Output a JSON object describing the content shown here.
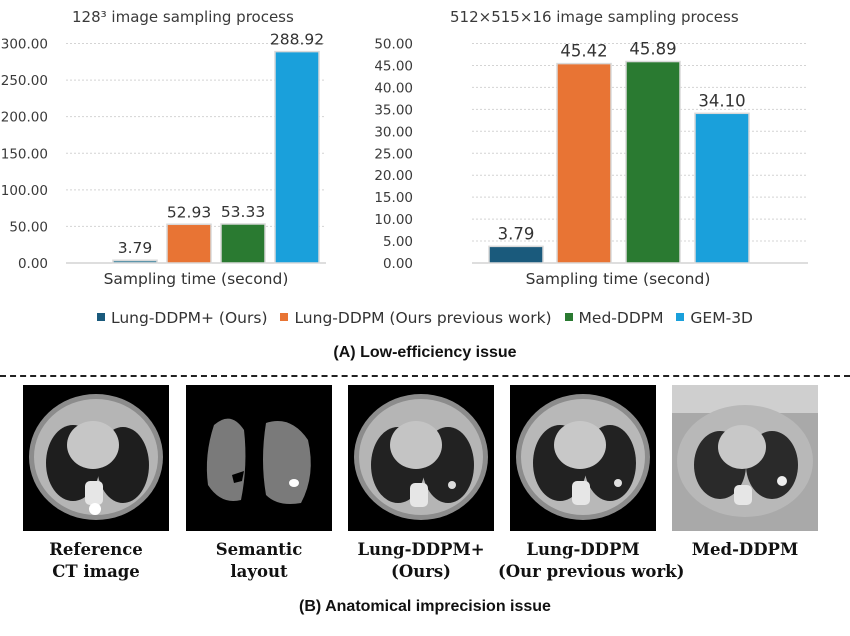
{
  "chart_data": [
    {
      "type": "bar",
      "title": "128³ image sampling process",
      "xlabel": "Sampling time (second)",
      "ylabel": "",
      "ylim": [
        0,
        300
      ],
      "yticks": [
        "0.00",
        "50.00",
        "100.00",
        "150.00",
        "200.00",
        "250.00",
        "300.00"
      ],
      "grid": true,
      "series": [
        {
          "name": "Lung-DDPM+ (Ours)",
          "values": [
            3.79
          ],
          "label": "3.79"
        },
        {
          "name": "Lung-DDPM (Ours previous work)",
          "values": [
            52.93
          ],
          "label": "52.93"
        },
        {
          "name": "Med-DDPM",
          "values": [
            53.33
          ],
          "label": "53.33"
        },
        {
          "name": "GEM-3D",
          "values": [
            288.92
          ],
          "label": "288.92"
        }
      ]
    },
    {
      "type": "bar",
      "title": "512×515×16 image sampling process",
      "xlabel": "Sampling time (second)",
      "ylabel": "",
      "ylim": [
        0,
        50
      ],
      "yticks": [
        "0.00",
        "5.00",
        "10.00",
        "15.00",
        "20.00",
        "25.00",
        "30.00",
        "35.00",
        "40.00",
        "45.00",
        "50.00"
      ],
      "grid": true,
      "series": [
        {
          "name": "Lung-DDPM+ (Ours)",
          "values": [
            3.79
          ],
          "label": "3.79"
        },
        {
          "name": "Lung-DDPM (Ours previous work)",
          "values": [
            45.42
          ],
          "label": "45.42"
        },
        {
          "name": "Med-DDPM",
          "values": [
            45.89
          ],
          "label": "45.89"
        },
        {
          "name": "GEM-3D",
          "values": [
            34.1
          ],
          "label": "34.10"
        }
      ]
    }
  ],
  "colors": {
    "left": [
      "#5f96ab",
      "#e87434",
      "#2a7a31",
      "#1aa0db"
    ],
    "right": [
      "#1a5a7c",
      "#e87434",
      "#2a7a31",
      "#1aa0db"
    ],
    "legend": [
      "#1a5a7c",
      "#e87434",
      "#2a7a31",
      "#1aa0db"
    ]
  },
  "legend": {
    "items": [
      "Lung-DDPM+ (Ours)",
      "Lung-DDPM (Ours previous work)",
      "Med-DDPM",
      "GEM-3D"
    ],
    "placement": "bottom"
  },
  "caption_a": "(A) Low-efficiency issue",
  "caption_b": "(B) Anatomical imprecision issue",
  "panels": {
    "reference": [
      "Reference",
      "CT image"
    ],
    "semantic": [
      "Semantic",
      "layout"
    ],
    "lung_ddpm_plus": [
      "Lung-DDPM+",
      "(Ours)"
    ],
    "lung_ddpm": [
      "Lung-DDPM",
      "(Our previous work)"
    ],
    "med_ddpm": [
      "Med-DDPM"
    ]
  }
}
